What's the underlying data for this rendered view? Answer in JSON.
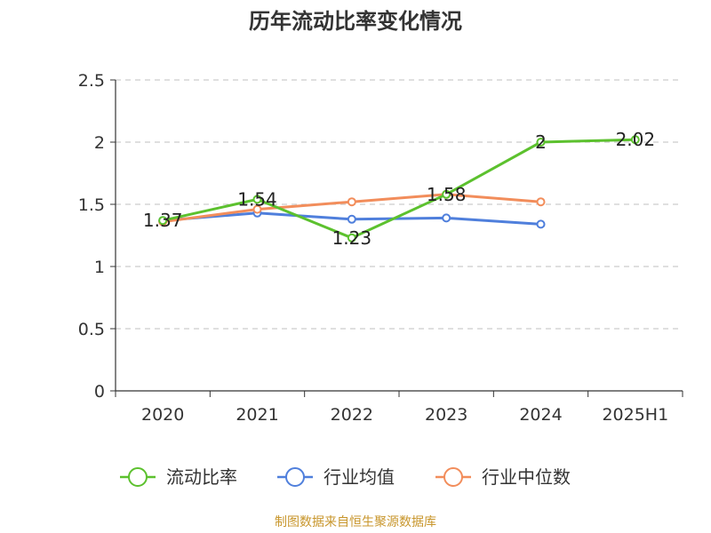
{
  "chart_data": {
    "type": "line",
    "title": "历年流动比率变化情况",
    "categories": [
      "2020",
      "2021",
      "2022",
      "2023",
      "2024",
      "2025H1"
    ],
    "ylim": [
      0,
      2.5
    ],
    "yticks": [
      "0",
      "0.5",
      "1",
      "1.5",
      "2",
      "2.5"
    ],
    "grid": true,
    "legend_position": "bottom",
    "series": [
      {
        "name": "流动比率",
        "color": "#5cc12e",
        "values": [
          1.37,
          1.54,
          1.23,
          1.58,
          2,
          2.02
        ],
        "labels": [
          "1.37",
          "1.54",
          "1.23",
          "1.58",
          "2",
          "2.02"
        ]
      },
      {
        "name": "行业均值",
        "color": "#4f7fdc",
        "values": [
          1.37,
          1.43,
          1.38,
          1.39,
          1.34,
          null
        ]
      },
      {
        "name": "行业中位数",
        "color": "#f28d5b",
        "values": [
          1.36,
          1.46,
          1.52,
          1.58,
          1.52,
          null
        ]
      }
    ]
  },
  "footer": {
    "source": "制图数据来自恒生聚源数据库"
  }
}
